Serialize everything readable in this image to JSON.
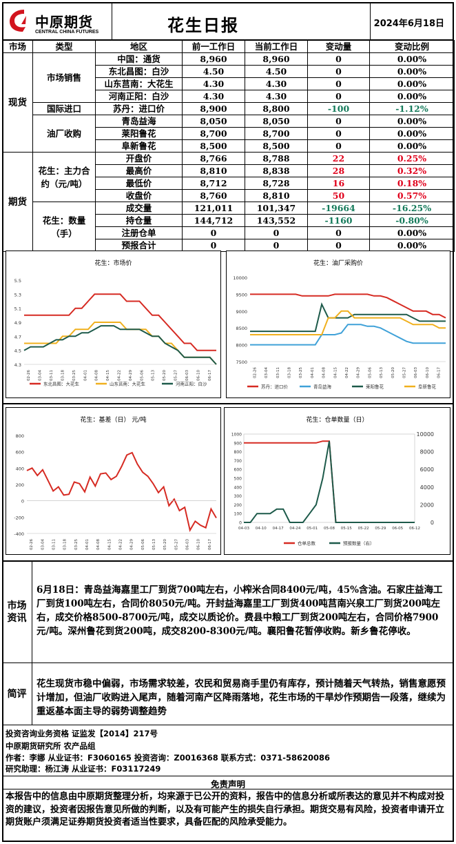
{
  "header": {
    "logo_cn": "中原期货",
    "logo_en": "CENTRAL CHINA FUTURES",
    "title": "花生日报",
    "date": "2024年6月18日"
  },
  "table": {
    "headers": [
      "市场",
      "类型",
      "地区",
      "前一工作日",
      "当前工作日",
      "变动量",
      "变动比例"
    ],
    "spot_label": "现货",
    "futures_label": "期货",
    "groups": {
      "sales": "市场销售",
      "import": "国际进口",
      "mill": "油厂收购",
      "fut_price": "花生：主力合约（元/吨）",
      "fut_qty": "花生：数量（手）"
    },
    "rows": [
      {
        "region": "中国：通货",
        "prev": "8,960",
        "cur": "8,960",
        "chg": "0",
        "pct": "0.00%",
        "c": ""
      },
      {
        "region": "东北昌图：白沙",
        "prev": "4.50",
        "cur": "4.50",
        "chg": "0",
        "pct": "0.00%",
        "c": ""
      },
      {
        "region": "山东莒南：大花生",
        "prev": "4.30",
        "cur": "4.30",
        "chg": "0",
        "pct": "0.00%",
        "c": ""
      },
      {
        "region": "河南正阳：白沙",
        "prev": "4.30",
        "cur": "4.30",
        "chg": "0",
        "pct": "0.00%",
        "c": ""
      },
      {
        "region": "苏丹：进口价",
        "prev": "8,900",
        "cur": "8,800",
        "chg": "-100",
        "pct": "-1.12%",
        "c": "grn"
      },
      {
        "region": "青岛益海",
        "prev": "8,050",
        "cur": "8,050",
        "chg": "0",
        "pct": "0.00%",
        "c": ""
      },
      {
        "region": "莱阳鲁花",
        "prev": "8,700",
        "cur": "8,700",
        "chg": "0",
        "pct": "0.00%",
        "c": ""
      },
      {
        "region": "阜新鲁花",
        "prev": "8,500",
        "cur": "8,500",
        "chg": "0",
        "pct": "0.00%",
        "c": ""
      },
      {
        "region": "开盘价",
        "prev": "8,766",
        "cur": "8,788",
        "chg": "22",
        "pct": "0.25%",
        "c": "red"
      },
      {
        "region": "最高价",
        "prev": "8,810",
        "cur": "8,838",
        "chg": "28",
        "pct": "0.32%",
        "c": "red"
      },
      {
        "region": "最低价",
        "prev": "8,712",
        "cur": "8,728",
        "chg": "16",
        "pct": "0.18%",
        "c": "red"
      },
      {
        "region": "收盘价",
        "prev": "8,760",
        "cur": "8,810",
        "chg": "50",
        "pct": "0.57%",
        "c": "red"
      },
      {
        "region": "成交量",
        "prev": "121,011",
        "cur": "101,347",
        "chg": "-19664",
        "pct": "-16.25%",
        "c": "grn"
      },
      {
        "region": "持仓量",
        "prev": "144,712",
        "cur": "143,552",
        "chg": "-1160",
        "pct": "-0.80%",
        "c": "grn"
      },
      {
        "region": "注册仓单",
        "prev": "0",
        "cur": "0",
        "chg": "0",
        "pct": "0.00%",
        "c": ""
      },
      {
        "region": "预报合计",
        "prev": "0",
        "cur": "0",
        "chg": "0",
        "pct": "0.00%",
        "c": ""
      }
    ]
  },
  "chart_data": [
    {
      "type": "line",
      "title": "花生：市场价",
      "ylim": [
        4.3,
        5.5
      ],
      "yticks": [
        "5.5",
        "5.3",
        "5.1",
        "4.9",
        "4.7",
        "4.5",
        "4.3"
      ],
      "xticks": [
        "02-26",
        "03-04",
        "03-11",
        "03-18",
        "03-25",
        "04-01",
        "04-08",
        "04-15",
        "04-22",
        "04-29",
        "05-06",
        "05-13",
        "05-20",
        "05-27",
        "06-03",
        "06-10",
        "06-17"
      ],
      "series": [
        {
          "name": "东北昌图：大花生",
          "color": "#d62a22",
          "values": [
            5.0,
            5.0,
            5.0,
            5.0,
            5.0,
            5.0,
            5.0,
            5.0,
            5.1,
            5.1,
            5.2,
            5.3,
            5.3,
            5.3,
            5.3,
            5.3,
            5.2,
            5.2,
            5.2,
            5.1,
            5.0,
            5.0,
            4.9,
            4.8,
            4.7,
            4.6,
            4.6,
            4.5,
            4.5,
            4.5,
            4.5
          ]
        },
        {
          "name": "山东莒南：大花生",
          "color": "#f0b01e",
          "values": [
            4.6,
            4.6,
            4.6,
            4.6,
            4.6,
            4.6,
            4.7,
            4.7,
            4.8,
            4.8,
            4.8,
            4.9,
            4.9,
            4.9,
            4.9,
            4.9,
            4.8,
            4.8,
            4.8,
            4.8,
            4.7,
            4.7,
            4.6,
            4.6,
            4.5,
            4.4,
            4.4,
            4.4,
            4.4,
            4.4,
            4.3
          ]
        },
        {
          "name": "河南正阳：白沙",
          "color": "#1d5a4a",
          "values": [
            4.5,
            4.55,
            4.55,
            4.55,
            4.6,
            4.65,
            4.65,
            4.7,
            4.7,
            4.75,
            4.75,
            4.8,
            4.85,
            4.85,
            4.85,
            4.8,
            4.8,
            4.8,
            4.8,
            4.75,
            4.7,
            4.7,
            4.6,
            4.55,
            4.5,
            4.4,
            4.4,
            4.4,
            4.4,
            4.4,
            4.3
          ]
        }
      ]
    },
    {
      "type": "line",
      "title": "花生：油厂采购价",
      "ylim": [
        7500,
        10000
      ],
      "yticks": [
        "10000",
        "9500",
        "9000",
        "8500",
        "8000",
        "7500"
      ],
      "xticks": [
        "02-26",
        "03-04",
        "03-11",
        "03-18",
        "03-25",
        "04-01",
        "04-08",
        "04-15",
        "04-22",
        "04-29",
        "05-06",
        "05-13",
        "05-20",
        "05-27",
        "06-03",
        "06-10",
        "06-17"
      ],
      "series": [
        {
          "name": "苏丹：进口价",
          "color": "#d62a22",
          "values": [
            9500,
            9500,
            9500,
            9500,
            9500,
            9500,
            9500,
            9500,
            9450,
            9450,
            9450,
            9450,
            9450,
            9500,
            9500,
            9500,
            9500,
            9500,
            9500,
            9450,
            9450,
            9400,
            9300,
            9200,
            9100,
            9000,
            9000,
            9000,
            8900,
            8900,
            8800
          ]
        },
        {
          "name": "青岛益海",
          "color": "#3fa1d8",
          "values": [
            8000,
            8000,
            8000,
            8000,
            8000,
            8000,
            8000,
            8000,
            8000,
            8000,
            8000,
            8300,
            8300,
            8300,
            8350,
            8600,
            8600,
            8600,
            8550,
            8550,
            8500,
            8400,
            8300,
            8200,
            8100,
            8050,
            8050,
            8050,
            8050,
            8050,
            8050
          ]
        },
        {
          "name": "莱阳鲁花",
          "color": "#1d5a4a",
          "values": [
            8400,
            8400,
            8400,
            8400,
            8400,
            8400,
            8400,
            8400,
            8400,
            8400,
            8400,
            9200,
            8800,
            8800,
            8800,
            8800,
            8900,
            8900,
            8900,
            8900,
            8900,
            8900,
            8900,
            8900,
            8900,
            8800,
            8700,
            8700,
            8700,
            8700,
            8700
          ]
        },
        {
          "name": "阜新鲁花",
          "color": "#f0b01e",
          "values": [
            8300,
            8300,
            8300,
            8300,
            8300,
            8300,
            8300,
            8300,
            8300,
            8300,
            8300,
            8300,
            8800,
            8800,
            9000,
            9000,
            8800,
            8800,
            8800,
            8800,
            8800,
            8800,
            8800,
            8800,
            8700,
            8600,
            8600,
            8600,
            8600,
            8500,
            8500
          ]
        }
      ]
    },
    {
      "type": "line",
      "title": "花生：基差（日） 元/吨",
      "ylim": [
        -400,
        800
      ],
      "yticks": [
        "800",
        "600",
        "400",
        "200",
        "0",
        "-200",
        "-400"
      ],
      "xticks": [
        "02-26",
        "03-04",
        "03-11",
        "03-18",
        "03-25",
        "04-01",
        "04-08",
        "04-15",
        "04-22",
        "04-29",
        "05-06",
        "05-13",
        "05-20",
        "05-27",
        "06-03",
        "06-10",
        "06-17"
      ],
      "series": [
        {
          "name": "",
          "color": "#d62a22",
          "values": [
            370,
            400,
            310,
            380,
            250,
            120,
            170,
            70,
            80,
            230,
            210,
            110,
            290,
            180,
            330,
            340,
            260,
            300,
            420,
            560,
            590,
            450,
            350,
            300,
            210,
            100,
            170,
            -60,
            20,
            -120,
            -80,
            -360,
            -250,
            -300,
            -330,
            -100,
            -210
          ]
        }
      ]
    },
    {
      "type": "line",
      "title": "花生：仓单数量（日）",
      "ylim_left": [
        0,
        1000
      ],
      "ylim_right": [
        0,
        10000
      ],
      "yticks_left": [
        "1000",
        "900",
        "800",
        "700",
        "600",
        "500",
        "400",
        "300",
        "200",
        "100",
        "0"
      ],
      "yticks_right": [
        "10000",
        "8000",
        "6000",
        "4000",
        "2000",
        "0"
      ],
      "xticks": [
        "04-03",
        "04-10",
        "04-17",
        "04-24",
        "05-01",
        "05-08",
        "05-15",
        "05-22",
        "05-29",
        "06-05",
        "06-12"
      ],
      "series": [
        {
          "name": "仓单总数",
          "color": "#d62a22",
          "values": [
            900,
            900,
            900,
            900,
            900,
            900,
            900,
            900,
            900,
            900,
            900,
            900,
            920,
            920,
            0,
            0,
            0,
            0,
            0,
            0,
            0,
            0,
            0,
            0,
            0,
            0,
            0
          ]
        },
        {
          "name": "预报数量（右）",
          "color": "#1d5a4a",
          "values": [
            0,
            0,
            1000,
            1000,
            1000,
            1500,
            1500,
            0,
            0,
            0,
            1000,
            2000,
            5000,
            9200,
            0,
            0,
            0,
            0,
            0,
            0,
            0,
            0,
            0,
            0,
            0,
            0,
            0
          ]
        }
      ]
    }
  ],
  "market_info": {
    "label": "市场资讯",
    "text": "6月18日：青岛益海嘉里工厂到货700吨左右，小榨米合同8400元/吨，45%含油。石家庄益海工厂到货100吨左右，合同价8050元/吨。开封益海嘉里工厂到货400吨莒南兴泉工厂到货200吨左右，成交价格8500-8700元/吨，成交以质论价。费县中粮工厂到货200吨左右，合同价格7900元/吨。深州鲁花到货200吨，成交8200-8300元/吨。襄阳鲁花暂停收购。新乡鲁花停收。"
  },
  "comment": {
    "label": "简评",
    "text": "花生现货市稳中偏弱，市场需求较差，农民和贸易商手里仍有库存，预计随着天气转热，销售意愿预计增加，但油厂收购进入尾声，随着河南产区降雨落地，花生市场的干旱炒作预期告一段落，继续为重返基本面主导的弱势调整趋势"
  },
  "footer": {
    "line1": "投资咨询业务资格   证监发【2014】217号",
    "line2": "中原期货研究所    农产品组",
    "line3": "作者：李娜     从业证书：F3060165     投资咨询：Z0016368     联系方式：0371-58620086",
    "line4": "研究助理：杨江涛     从业证书：F03117249",
    "disclaimer_title": "免责声明",
    "disclaimer": "本报告中的信息由中原期货整理分析，均来源于已公开的资料，报告中的信息分析或所表达的意见并不构成对投资的建议，投资者因报告意见所做的判断，以及有可能产生的损失自行承担。期货交易有风险，投资者申请开立期货账户须满足证券期货投资者适当性要求，具备匹配的风险承受能力。"
  }
}
